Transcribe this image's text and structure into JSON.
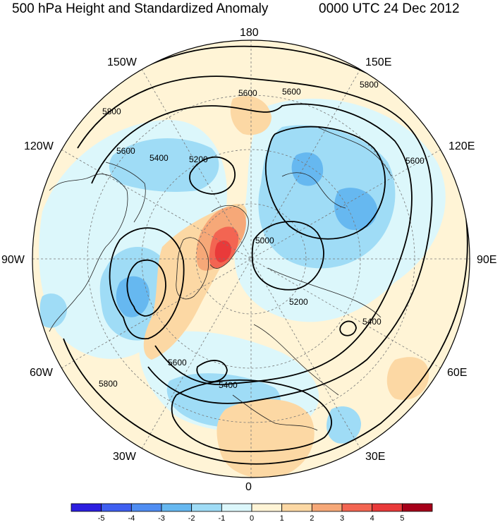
{
  "title_left": "500 hPa Height and Standardized Anomaly",
  "title_right": "0000 UTC 24 Dec 2012",
  "longitude_labels": {
    "top": "180",
    "bottom": "0",
    "left": "90W",
    "right": "90E",
    "upper_left": "150W",
    "upper_right": "150E",
    "mid_left": "120W",
    "mid_right": "120E",
    "lower_left": "60W",
    "lower_right": "60E",
    "bottom_left": "30W",
    "bottom_right": "30E"
  },
  "contour_labels": [
    {
      "text": "5800"
    },
    {
      "text": "5600"
    },
    {
      "text": "5400"
    },
    {
      "text": "5200"
    },
    {
      "text": "5600"
    },
    {
      "text": "5600"
    },
    {
      "text": "5800"
    },
    {
      "text": "5600"
    },
    {
      "text": "5000"
    },
    {
      "text": "5200"
    },
    {
      "text": "5400"
    },
    {
      "text": "5600"
    },
    {
      "text": "5400"
    },
    {
      "text": "5800"
    }
  ],
  "colorbar": {
    "ticks": [
      "-5",
      "-4",
      "-3",
      "-2",
      "-1",
      "0",
      "1",
      "2",
      "3",
      "4",
      "5"
    ],
    "colors": [
      "#2c1ee0",
      "#3f5ff0",
      "#4f8df2",
      "#66b8f0",
      "#9fdcf6",
      "#dcf7fb",
      "#fff4d6",
      "#fcd8a4",
      "#f6a878",
      "#f36552",
      "#e93a3a",
      "#a6001a"
    ]
  },
  "colors": {
    "anomaly_neg_strong": "#66b8f0",
    "anomaly_neg": "#9fdcf6",
    "anomaly_neg_weak": "#dcf7fb",
    "anomaly_pos_weak": "#fff4d6",
    "anomaly_pos": "#fcd8a4",
    "anomaly_pos_strong": "#f6a878",
    "anomaly_pos_max": "#e93a3a"
  }
}
